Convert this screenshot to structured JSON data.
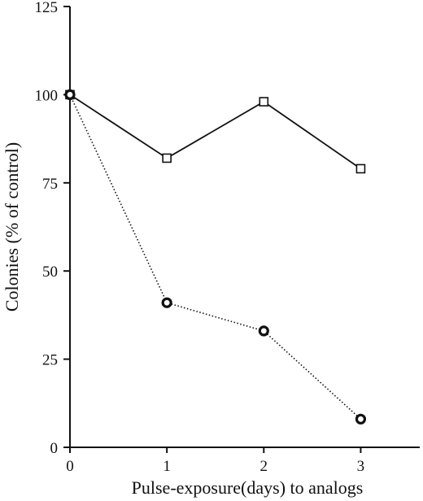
{
  "chart_data": {
    "type": "line",
    "xlabel": "Pulse-exposure(days) to analogs",
    "ylabel": "Colonies (% of control)",
    "xlim": [
      0,
      3.5
    ],
    "ylim": [
      0,
      125
    ],
    "x_ticks": [
      0,
      1,
      2,
      3
    ],
    "x_tick_labels": [
      "0",
      "1",
      "2",
      "3"
    ],
    "y_ticks": [
      0,
      25,
      50,
      75,
      100,
      125
    ],
    "y_tick_labels": [
      "0",
      "25",
      "50",
      "75",
      "100",
      "125"
    ],
    "grid": false,
    "series": [
      {
        "marker": "open-square",
        "line_style": "solid",
        "color": "#111111",
        "x": [
          0,
          1,
          2,
          3
        ],
        "y": [
          100,
          82,
          98,
          79
        ]
      },
      {
        "marker": "bold-open-circle",
        "line_style": "dotted",
        "color": "#111111",
        "x": [
          0,
          1,
          2,
          3
        ],
        "y": [
          100,
          41,
          33,
          8
        ]
      }
    ]
  }
}
